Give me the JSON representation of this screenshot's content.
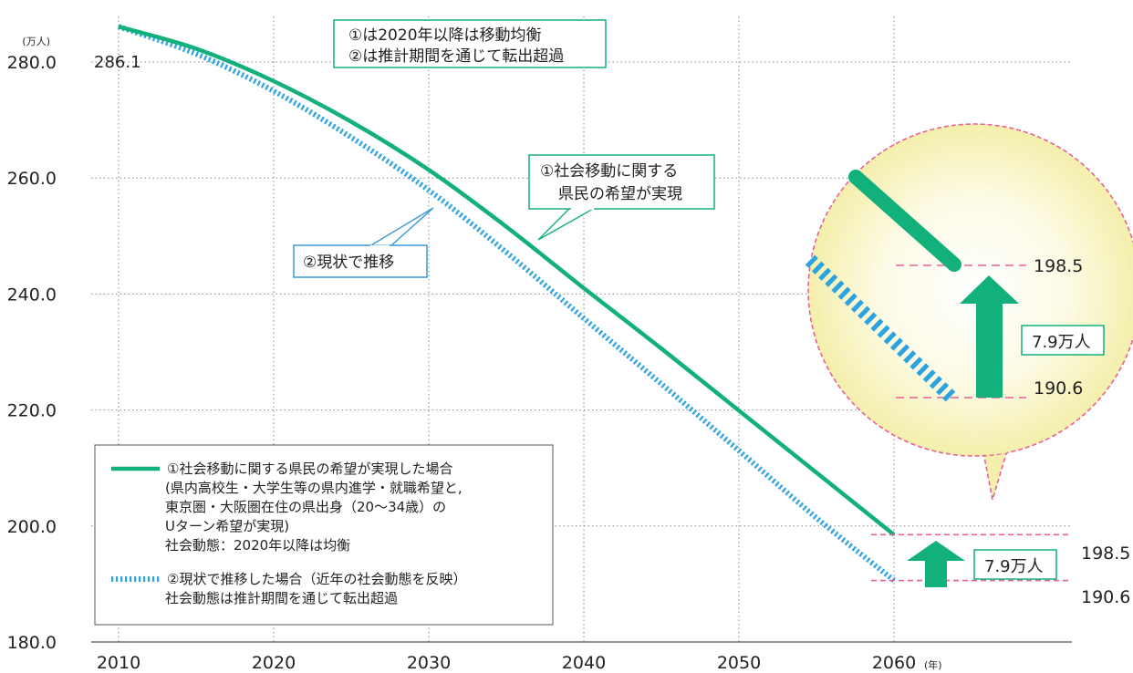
{
  "chart_data": {
    "type": "line",
    "y_unit": "(万人)",
    "x_unit": "(年)",
    "ylim": [
      180,
      280
    ],
    "xlim": [
      2010,
      2060
    ],
    "y_ticks": [
      "280.0",
      "260.0",
      "240.0",
      "220.0",
      "200.0",
      "180.0"
    ],
    "x_ticks": [
      "2010",
      "2020",
      "2030",
      "2040",
      "2050",
      "2060"
    ],
    "grid": "dotted",
    "start_label": "286.1",
    "series": [
      {
        "name": "①社会移動に関する県民の希望が実現した場合",
        "color": "#12b07a",
        "style": "solid",
        "x": [
          2010,
          2015,
          2020,
          2025,
          2030,
          2035,
          2040,
          2045,
          2050,
          2055,
          2060
        ],
        "values": [
          286.1,
          282.3,
          276.7,
          269.7,
          261.4,
          251.6,
          241.0,
          230.6,
          219.9,
          209.2,
          198.5
        ]
      },
      {
        "name": "②現状で推移した場合（近年の社会動態を反映）",
        "color": "#2aa3e0",
        "style": "dashed",
        "x": [
          2010,
          2015,
          2020,
          2025,
          2030,
          2035,
          2040,
          2045,
          2050,
          2055,
          2060
        ],
        "values": [
          286.1,
          281.4,
          275.0,
          267.0,
          257.9,
          247.2,
          235.8,
          224.5,
          213.0,
          201.4,
          190.6
        ]
      }
    ],
    "end_values": [
      "198.5",
      "190.6"
    ],
    "difference_label": "7.9万人",
    "note_box": [
      "①は2020年以降は移動均衡",
      "②は推計期間を通じて転出超過"
    ],
    "callout_1": [
      "①社会移動に関する",
      "県民の希望が実現"
    ],
    "callout_2": "②現状で推移",
    "legend": {
      "position": "bottom-left",
      "item1_lines": [
        "①社会移動に関する県民の希望が実現した場合",
        "(県内高校生・大学生等の県内進学・就職希望と,",
        "東京圏・大阪圏在住の県出身（20～34歳）の",
        "Uターン希望が実現)",
        "社会動態：2020年以降は均衡"
      ],
      "item2_lines": [
        "②現状で推移した場合（近年の社会動態を反映）",
        "社会動態は推計期間を通じて転出超過"
      ]
    },
    "zoom": {
      "upper_value": "198.5",
      "lower_value": "190.6",
      "difference_label": "7.9万人"
    }
  }
}
